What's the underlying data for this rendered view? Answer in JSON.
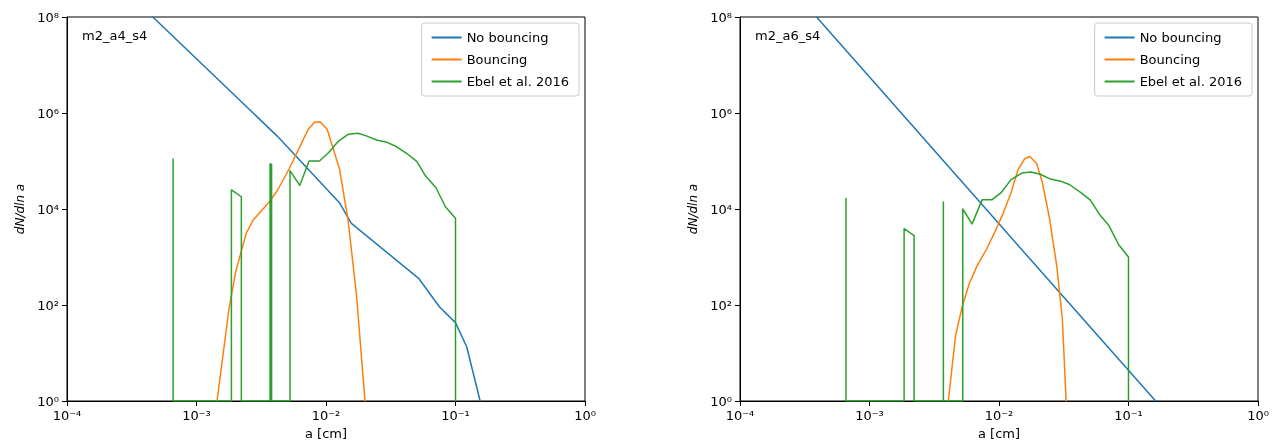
{
  "chart_data": [
    {
      "type": "line",
      "xlabel": "a [cm]",
      "ylabel": "dN/dln a",
      "annotations": [
        "m2_a4_s4"
      ],
      "log": "xy",
      "grid": false,
      "legend": "top right",
      "marker": "none",
      "line_style": "solid",
      "xlim": [
        0.0001,
        1
      ],
      "ylim": [
        1,
        100000000
      ],
      "xticks": [
        {
          "value": 0.0001,
          "label": "10⁻⁴"
        },
        {
          "value": 0.001,
          "label": "10⁻³"
        },
        {
          "value": 0.01,
          "label": "10⁻²"
        },
        {
          "value": 0.1,
          "label": "10⁻¹"
        },
        {
          "value": 1,
          "label": "10⁰"
        }
      ],
      "yticks": [
        {
          "value": 1,
          "label": "10⁰"
        },
        {
          "value": 100,
          "label": "10²"
        },
        {
          "value": 10000,
          "label": "10⁴"
        },
        {
          "value": 1000000,
          "label": "10⁶"
        },
        {
          "value": 100000000,
          "label": "10⁸"
        }
      ],
      "series": [
        {
          "name": "No bouncing",
          "color": "#1f77b4",
          "x": [
            0.00046,
            0.0042,
            0.0127,
            0.0157,
            0.0519,
            0.075,
            0.1,
            0.122,
            0.155
          ],
          "values": [
            100000000,
            330000,
            13500,
            5000,
            360,
            92,
            43,
            13.5,
            1
          ]
        },
        {
          "name": "Bouncing",
          "color": "#ff7f0e",
          "x": [
            0.00144,
            0.00178,
            0.00201,
            0.00242,
            0.00274,
            0.0036,
            0.0042,
            0.0052,
            0.0073,
            0.00815,
            0.009,
            0.0102,
            0.0127,
            0.0148,
            0.0172,
            0.02
          ],
          "values": [
            1,
            81,
            500,
            3100,
            5900,
            13500,
            24000,
            69000,
            460000,
            640000,
            660000,
            460000,
            69000,
            5900,
            160,
            1
          ]
        },
        {
          "name": "Ebel et al. 2016",
          "color": "#2ca02c",
          "x": [
            0.00066,
            0.00066,
            0.00066,
            0.00186,
            0.00186,
            0.00222,
            0.00222,
            0.0037,
            0.0037,
            0.0038,
            0.0038,
            0.00527,
            0.00527,
            0.00627,
            0.0074,
            0.0089,
            0.0105,
            0.0125,
            0.0148,
            0.0177,
            0.0207,
            0.0249,
            0.029,
            0.0349,
            0.0419,
            0.0504,
            0.0586,
            0.0705,
            0.0838,
            0.1,
            0.1
          ],
          "values": [
            1,
            110000,
            1,
            1,
            25000,
            18000,
            1,
            1,
            88000,
            85000,
            1,
            1,
            63000,
            31000,
            100000,
            100000,
            150000,
            260000,
            360000,
            380000,
            330000,
            270000,
            250000,
            200000,
            145000,
            97000,
            49000,
            28000,
            11000,
            6400,
            1
          ]
        }
      ]
    },
    {
      "type": "line",
      "xlabel": "a [cm]",
      "ylabel": "dN/dln a",
      "annotations": [
        "m2_a6_s4"
      ],
      "log": "xy",
      "grid": false,
      "legend": "top right",
      "marker": "none",
      "line_style": "solid",
      "xlim": [
        0.0001,
        1
      ],
      "ylim": [
        1,
        100000000
      ],
      "xticks": [
        {
          "value": 0.0001,
          "label": "10⁻⁴"
        },
        {
          "value": 0.001,
          "label": "10⁻³"
        },
        {
          "value": 0.01,
          "label": "10⁻²"
        },
        {
          "value": 0.1,
          "label": "10⁻¹"
        },
        {
          "value": 1,
          "label": "10⁰"
        }
      ],
      "yticks": [
        {
          "value": 1,
          "label": "10⁰"
        },
        {
          "value": 100,
          "label": "10²"
        },
        {
          "value": 10000,
          "label": "10⁴"
        },
        {
          "value": 1000000,
          "label": "10⁶"
        },
        {
          "value": 100000000,
          "label": "10⁸"
        }
      ],
      "series": [
        {
          "name": "No bouncing",
          "color": "#1f77b4",
          "x": [
            0.00039,
            0.01,
            0.162
          ],
          "values": [
            100000000,
            4900,
            1
          ]
        },
        {
          "name": "Bouncing",
          "color": "#ff7f0e",
          "x": [
            0.00406,
            0.00462,
            0.0052,
            0.00587,
            0.00678,
            0.008,
            0.0091,
            0.0107,
            0.0124,
            0.014,
            0.0157,
            0.0173,
            0.0195,
            0.0215,
            0.0245,
            0.0279,
            0.0308,
            0.033
          ],
          "values": [
            1,
            23,
            93,
            270,
            660,
            1450,
            2950,
            7800,
            22000,
            65000,
            110000,
            124000,
            89000,
            38000,
            6600,
            660,
            55,
            1
          ]
        },
        {
          "name": "Ebel et al. 2016",
          "color": "#2ca02c",
          "x": [
            0.000658,
            0.000658,
            0.000658,
            0.00185,
            0.00185,
            0.00221,
            0.00221,
            0.00372,
            0.00372,
            0.00372,
            0.00525,
            0.00525,
            0.0062,
            0.0074,
            0.0088,
            0.0104,
            0.0124,
            0.015,
            0.0176,
            0.0208,
            0.025,
            0.0299,
            0.0352,
            0.0429,
            0.0506,
            0.0596,
            0.0703,
            0.084,
            0.1,
            0.1
          ],
          "values": [
            1,
            16600,
            1,
            1,
            3900,
            2800,
            1,
            1,
            14000,
            1,
            1,
            10000,
            4900,
            15500,
            15500,
            22000,
            41000,
            56000,
            59000,
            53000,
            42000,
            38000,
            32000,
            22000,
            15500,
            7800,
            4600,
            1800,
            1000,
            1
          ]
        }
      ]
    }
  ]
}
